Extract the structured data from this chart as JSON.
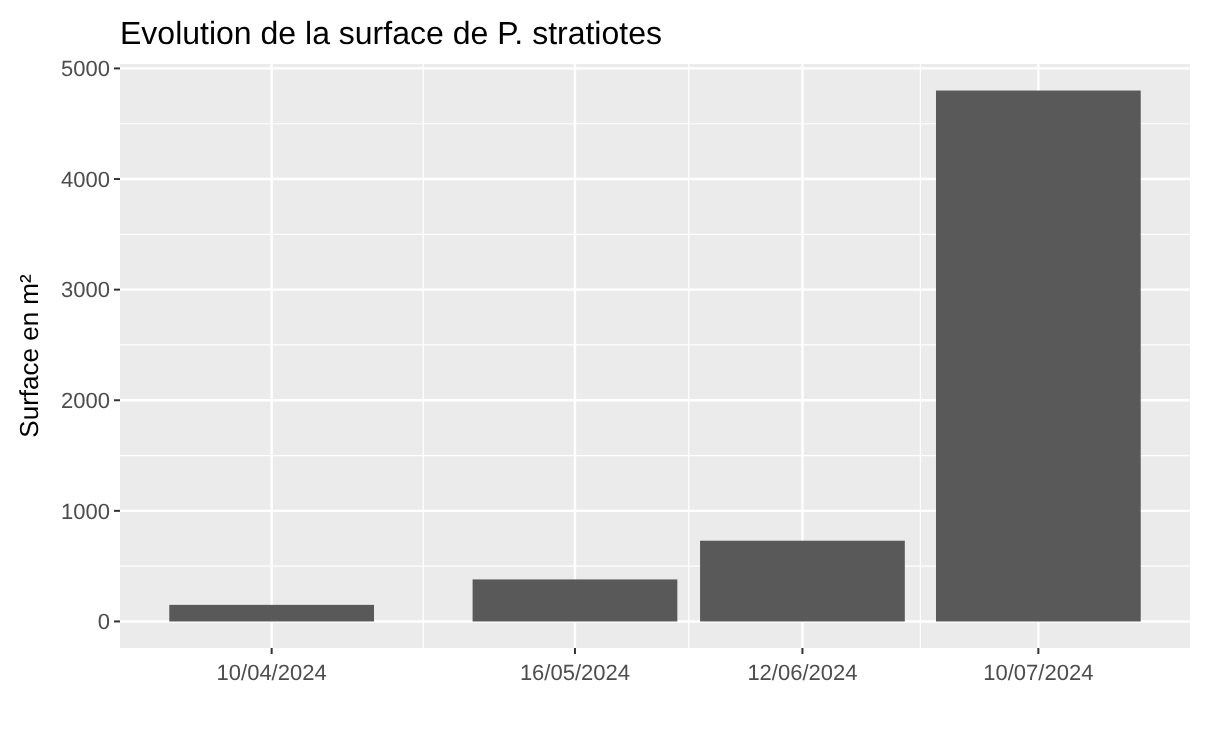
{
  "chart_data": {
    "type": "bar",
    "title": "Evolution de la surface de P. stratiotes",
    "ylabel": "Surface en m²",
    "x": [
      "2024-04-10",
      "2024-05-16",
      "2024-06-12",
      "2024-07-10"
    ],
    "values": [
      150,
      380,
      730,
      4800
    ],
    "color": "#595959",
    "xlim": [
      "2024-03-23",
      "2024-07-28"
    ],
    "xticks": [
      {
        "value": "2024-04-10",
        "label": "10/04/2024"
      },
      {
        "value": "2024-05-16",
        "label": "16/05/2024"
      },
      {
        "value": "2024-06-12",
        "label": "12/06/2024"
      },
      {
        "value": "2024-07-10",
        "label": "10/07/2024"
      }
    ],
    "ylim": [
      -240,
      5040
    ],
    "yticks": [
      0,
      1000,
      2000,
      3000,
      4000,
      5000
    ],
    "grid": true
  }
}
